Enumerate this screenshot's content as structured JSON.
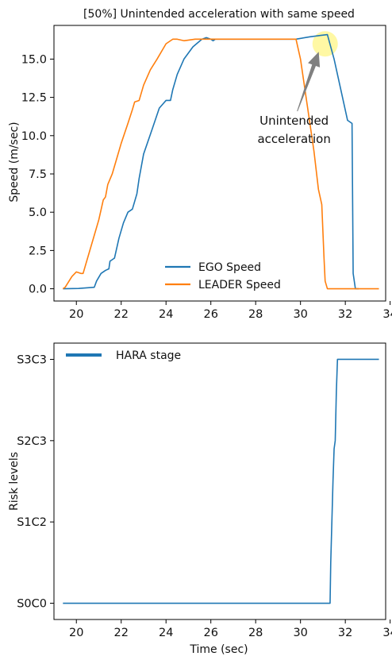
{
  "chart_data": [
    {
      "type": "line",
      "title": "[50%] Unintended acceleration with same speed",
      "xlabel": "",
      "ylabel": "Speed (m/sec)",
      "xlim": [
        19.0,
        33.8
      ],
      "ylim": [
        -0.8,
        17.2
      ],
      "xticks": [
        20,
        22,
        24,
        26,
        28,
        30,
        32,
        34
      ],
      "yticks": [
        0.0,
        2.5,
        5.0,
        7.5,
        10.0,
        12.5,
        15.0
      ],
      "ytick_labels": [
        "0.0",
        "2.5",
        "5.0",
        "7.5",
        "10.0",
        "12.5",
        "15.0"
      ],
      "legend_position": "lower-center",
      "annotation": {
        "text_line1": "Unintended",
        "text_line2": "acceleration",
        "target": [
          31.1,
          16.1
        ],
        "text_at": [
          30.0,
          11.7
        ],
        "arrow_color": "#808080",
        "highlight_color": "#fff79a"
      },
      "series": [
        {
          "name": "EGO Speed",
          "color": "#1f77b4",
          "x": [
            19.4,
            20.1,
            20.8,
            20.9,
            21.1,
            21.3,
            21.45,
            21.5,
            21.7,
            21.9,
            22.1,
            22.3,
            22.5,
            22.7,
            22.8,
            23.0,
            23.4,
            23.7,
            24.0,
            24.2,
            24.3,
            24.5,
            24.8,
            25.2,
            25.6,
            25.8,
            26.0,
            26.1,
            26.2,
            26.5,
            27.0,
            28.0,
            29.0,
            29.8,
            30.4,
            30.9,
            31.2,
            31.5,
            31.8,
            32.1,
            32.3,
            32.35,
            32.45,
            32.6
          ],
          "y": [
            0.0,
            0.02,
            0.1,
            0.5,
            1.0,
            1.2,
            1.3,
            1.8,
            2.0,
            3.3,
            4.3,
            5.0,
            5.2,
            6.2,
            7.2,
            8.8,
            10.5,
            11.8,
            12.3,
            12.3,
            13.0,
            14.0,
            15.0,
            15.8,
            16.3,
            16.4,
            16.3,
            16.2,
            16.3,
            16.3,
            16.3,
            16.3,
            16.3,
            16.3,
            16.45,
            16.55,
            16.6,
            15.0,
            13.0,
            11.0,
            10.8,
            1.0,
            0.0,
            0.0
          ]
        },
        {
          "name": "LEADER Speed",
          "color": "#ff7f0e",
          "x": [
            19.4,
            19.5,
            19.8,
            20.0,
            20.2,
            20.3,
            20.4,
            20.6,
            20.8,
            21.0,
            21.2,
            21.3,
            21.4,
            21.6,
            21.8,
            22.0,
            22.3,
            22.5,
            22.6,
            22.8,
            23.0,
            23.3,
            23.6,
            24.0,
            24.3,
            24.5,
            24.8,
            25.3,
            26.0,
            27.0,
            28.0,
            29.0,
            29.5,
            29.8,
            30.0,
            30.3,
            30.6,
            30.8,
            30.95,
            31.05,
            31.1,
            31.2,
            32.5,
            33.5
          ],
          "y": [
            0.0,
            0.1,
            0.8,
            1.1,
            1.0,
            1.0,
            1.5,
            2.5,
            3.5,
            4.5,
            5.8,
            6.0,
            6.8,
            7.5,
            8.5,
            9.5,
            10.8,
            11.7,
            12.2,
            12.3,
            13.3,
            14.3,
            15.0,
            16.0,
            16.3,
            16.3,
            16.2,
            16.3,
            16.3,
            16.3,
            16.3,
            16.3,
            16.3,
            16.3,
            15.0,
            12.0,
            9.0,
            6.5,
            5.5,
            2.0,
            0.5,
            0.0,
            0.0,
            0.0
          ]
        }
      ]
    },
    {
      "type": "line",
      "title": "",
      "xlabel": "Time (sec)",
      "ylabel": "Risk levels",
      "xlim": [
        19.0,
        33.8
      ],
      "ylim": [
        -0.2,
        3.2
      ],
      "xticks": [
        20,
        22,
        24,
        26,
        28,
        30,
        32,
        34
      ],
      "yticks": [
        0,
        1,
        2,
        3
      ],
      "ytick_labels": [
        "S0C0",
        "S1C2",
        "S2C3",
        "S3C3"
      ],
      "legend_position": "top-left",
      "series": [
        {
          "name": "HARA stage",
          "color": "#1f77b4",
          "x": [
            19.4,
            31.32,
            31.35,
            31.4,
            31.45,
            31.5,
            31.55,
            31.6,
            31.65,
            33.5
          ],
          "y": [
            0,
            0,
            0.5,
            1.0,
            1.5,
            1.9,
            2.0,
            2.6,
            3.0,
            3.0
          ]
        }
      ]
    }
  ]
}
